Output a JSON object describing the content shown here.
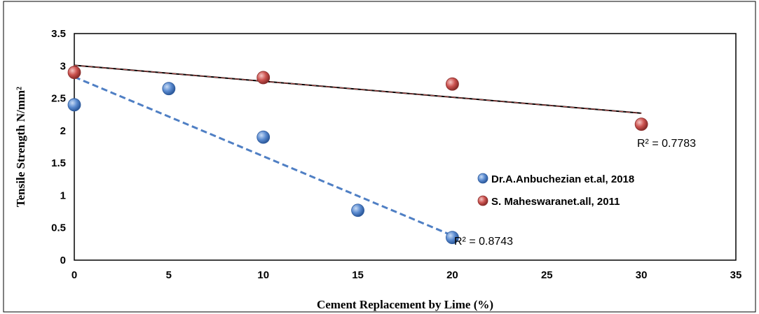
{
  "chart_data": {
    "type": "scatter",
    "xlabel": "Cement Replacement by Lime (%)",
    "ylabel": "Tensile Strength N/mm²",
    "xlim": [
      0,
      35
    ],
    "ylim": [
      0,
      3.5
    ],
    "x_ticks": [
      "0",
      "5",
      "10",
      "15",
      "20",
      "25",
      "30",
      "35"
    ],
    "y_ticks": [
      "0",
      "0.5",
      "1",
      "1.5",
      "2",
      "2.5",
      "3",
      "3.5"
    ],
    "legend_position": "right",
    "grid": false,
    "series": [
      {
        "name": "Dr.A.Anbuchezian et.al, 2018",
        "color": "#4F7FC4",
        "x": [
          0,
          5,
          10,
          15,
          20
        ],
        "y": [
          2.4,
          2.65,
          1.9,
          0.77,
          0.35
        ],
        "trendline": {
          "type": "linear",
          "from": [
            0,
            2.83
          ],
          "to": [
            20,
            0.38
          ],
          "style": "dashed",
          "color": "#4F7FC4"
        },
        "r2_label": "R² = 0.8743"
      },
      {
        "name": "S. Maheswaranet.all, 2011",
        "color": "#C0504D",
        "x": [
          0,
          10,
          20,
          30
        ],
        "y": [
          2.9,
          2.82,
          2.72,
          2.1
        ],
        "trendline": {
          "type": "linear",
          "from": [
            0,
            3.01
          ],
          "to": [
            30,
            2.27
          ],
          "style": "solid-dashed",
          "color": "#000000"
        },
        "r2_label": "R² = 0.7783"
      }
    ]
  }
}
